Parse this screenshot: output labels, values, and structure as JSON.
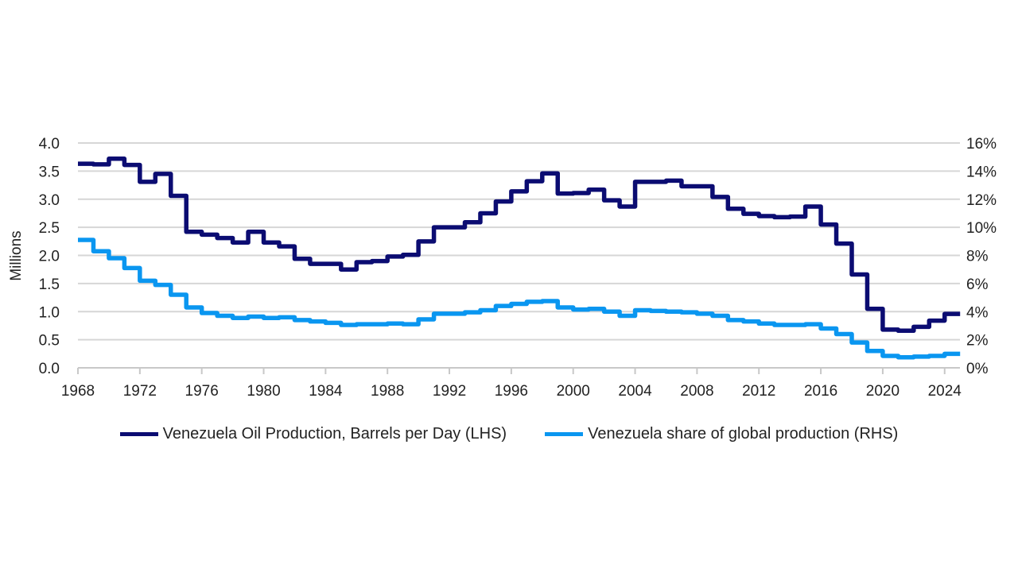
{
  "chart_data": {
    "type": "line",
    "step": true,
    "x": [
      1968,
      1969,
      1970,
      1971,
      1972,
      1973,
      1974,
      1975,
      1976,
      1977,
      1978,
      1979,
      1980,
      1981,
      1982,
      1983,
      1984,
      1985,
      1986,
      1987,
      1988,
      1989,
      1990,
      1991,
      1992,
      1993,
      1994,
      1995,
      1996,
      1997,
      1998,
      1999,
      2000,
      2001,
      2002,
      2003,
      2004,
      2005,
      2006,
      2007,
      2008,
      2009,
      2010,
      2011,
      2012,
      2013,
      2014,
      2015,
      2016,
      2017,
      2018,
      2019,
      2020,
      2021,
      2022,
      2023,
      2024
    ],
    "series": [
      {
        "name": "Venezuela Oil Production, Barrels per Day (LHS)",
        "axis": "left",
        "color": "#0b0c72",
        "values": [
          3.63,
          3.62,
          3.72,
          3.61,
          3.31,
          3.45,
          3.06,
          2.42,
          2.37,
          2.31,
          2.23,
          2.42,
          2.23,
          2.16,
          1.94,
          1.85,
          1.85,
          1.75,
          1.88,
          1.9,
          1.98,
          2.01,
          2.25,
          2.5,
          2.5,
          2.59,
          2.75,
          2.96,
          3.14,
          3.32,
          3.46,
          3.1,
          3.11,
          3.17,
          2.98,
          2.87,
          3.31,
          3.31,
          3.33,
          3.23,
          3.23,
          3.04,
          2.83,
          2.74,
          2.7,
          2.68,
          2.69,
          2.87,
          2.55,
          2.21,
          1.66,
          1.05,
          0.68,
          0.66,
          0.73,
          0.84,
          0.96
        ]
      },
      {
        "name": "Venezuela share of global production (RHS)",
        "axis": "right",
        "color": "#0a96f0",
        "values": [
          9.1,
          8.3,
          7.8,
          7.1,
          6.2,
          5.9,
          5.2,
          4.3,
          3.9,
          3.7,
          3.55,
          3.65,
          3.55,
          3.6,
          3.4,
          3.3,
          3.2,
          3.05,
          3.1,
          3.1,
          3.15,
          3.1,
          3.45,
          3.85,
          3.85,
          3.95,
          4.1,
          4.4,
          4.55,
          4.7,
          4.75,
          4.3,
          4.15,
          4.2,
          4.0,
          3.7,
          4.1,
          4.05,
          4.0,
          3.95,
          3.85,
          3.7,
          3.4,
          3.3,
          3.15,
          3.05,
          3.05,
          3.1,
          2.8,
          2.4,
          1.8,
          1.2,
          0.85,
          0.75,
          0.8,
          0.85,
          1.0
        ]
      }
    ],
    "ylabel": "Millions",
    "ylim": [
      0,
      4.0
    ],
    "y2lim": [
      0,
      16
    ],
    "yticks": [
      "0.0",
      "0.5",
      "1.0",
      "1.5",
      "2.0",
      "2.5",
      "3.0",
      "3.5",
      "4.0"
    ],
    "y2ticks": [
      "0%",
      "2%",
      "4%",
      "6%",
      "8%",
      "10%",
      "12%",
      "14%",
      "16%"
    ],
    "xticks": [
      "1968",
      "1972",
      "1976",
      "1980",
      "1984",
      "1988",
      "1992",
      "1996",
      "2000",
      "2004",
      "2008",
      "2012",
      "2016",
      "2020",
      "2024"
    ],
    "grid": true,
    "legend": "bottom"
  }
}
